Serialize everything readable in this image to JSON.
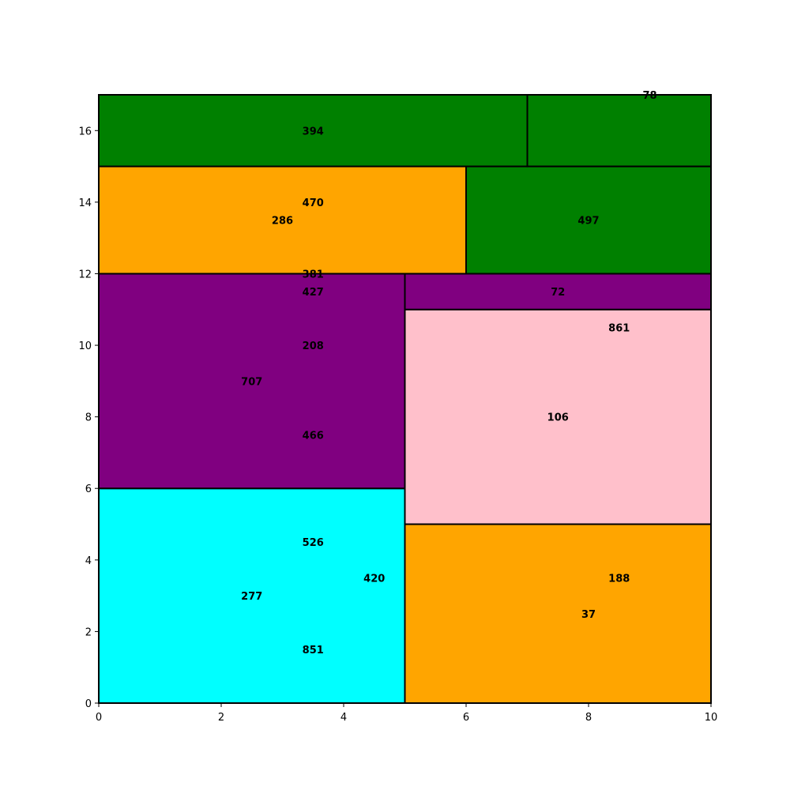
{
  "chart_data": {
    "type": "treemap",
    "title": "",
    "xlabel": "",
    "ylabel": "",
    "xlim": [
      0,
      10
    ],
    "ylim": [
      0,
      17
    ],
    "grid": false,
    "x_ticks": [
      "0",
      "2",
      "4",
      "6",
      "8",
      "10"
    ],
    "y_ticks": [
      "0",
      "2",
      "4",
      "6",
      "8",
      "10",
      "12",
      "14",
      "16"
    ],
    "colors": {
      "cyan": "#00ffff",
      "orange": "#ffa500",
      "pink": "#ffc0cb",
      "purple": "#800080",
      "green": "#008000",
      "edge": "#000000"
    },
    "rectangles": [
      {
        "x0": 0,
        "x1": 5,
        "y0": 0,
        "y1": 6,
        "color": "cyan"
      },
      {
        "x0": 5,
        "x1": 10,
        "y0": 0,
        "y1": 5,
        "color": "orange"
      },
      {
        "x0": 5,
        "x1": 10,
        "y0": 5,
        "y1": 11,
        "color": "pink"
      },
      {
        "x0": 0,
        "x1": 5,
        "y0": 6,
        "y1": 12,
        "color": "purple"
      },
      {
        "x0": 5,
        "x1": 10,
        "y0": 11,
        "y1": 12,
        "color": "purple"
      },
      {
        "x0": 0,
        "x1": 6,
        "y0": 12,
        "y1": 15,
        "color": "orange"
      },
      {
        "x0": 6,
        "x1": 10,
        "y0": 12,
        "y1": 15,
        "color": "green"
      },
      {
        "x0": 0,
        "x1": 7,
        "y0": 15,
        "y1": 17,
        "color": "green"
      },
      {
        "x0": 7,
        "x1": 10,
        "y0": 15,
        "y1": 17,
        "color": "green"
      }
    ],
    "labels": [
      {
        "text": "526",
        "x": 3.5,
        "y": 4.5
      },
      {
        "text": "420",
        "x": 4.5,
        "y": 3.5
      },
      {
        "text": "277",
        "x": 2.5,
        "y": 3.0
      },
      {
        "text": "851",
        "x": 3.5,
        "y": 1.5
      },
      {
        "text": "188",
        "x": 8.5,
        "y": 3.5
      },
      {
        "text": "37",
        "x": 8.0,
        "y": 2.5
      },
      {
        "text": "861",
        "x": 8.5,
        "y": 10.5
      },
      {
        "text": "106",
        "x": 7.5,
        "y": 8.0
      },
      {
        "text": "72",
        "x": 7.5,
        "y": 11.5
      },
      {
        "text": "427",
        "x": 3.5,
        "y": 11.5
      },
      {
        "text": "208",
        "x": 3.5,
        "y": 10.0
      },
      {
        "text": "707",
        "x": 2.5,
        "y": 9.0
      },
      {
        "text": "466",
        "x": 3.5,
        "y": 7.5
      },
      {
        "text": "381",
        "x": 3.5,
        "y": 12.0
      },
      {
        "text": "470",
        "x": 3.5,
        "y": 14.0
      },
      {
        "text": "286",
        "x": 3.0,
        "y": 13.5
      },
      {
        "text": "497",
        "x": 8.0,
        "y": 13.5
      },
      {
        "text": "394",
        "x": 3.5,
        "y": 16.0
      },
      {
        "text": "78",
        "x": 9.0,
        "y": 17.0
      }
    ]
  }
}
